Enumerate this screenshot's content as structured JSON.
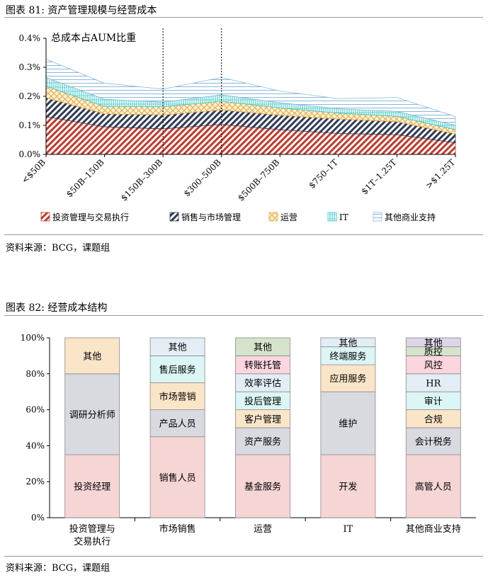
{
  "colors": {
    "invest": "#c0392b",
    "sales": "#2e3b55",
    "ops": "#e8b04a",
    "it": "#38c6c6",
    "other": "#8cb8d8",
    "bar_border": "#8a8a8a"
  },
  "chart_data": [
    {
      "type": "area",
      "figure_title": "图表 81: 资产管理规模与经营成本",
      "inner_title": "总成本占AUM比重",
      "categories": [
        "<$50B",
        "$50B–150B",
        "$150B–300B",
        "$300–500B",
        "$500B–750B",
        "$750–1T",
        "$1T–1.25T",
        ">$1.25T"
      ],
      "y_ticks": [
        "0.0%",
        "0.1%",
        "0.2%",
        "0.3%",
        "0.4%"
      ],
      "ylim": [
        0,
        0.4
      ],
      "stacked": true,
      "series": [
        {
          "name": "投资管理与交易执行",
          "values": [
            0.13,
            0.095,
            0.088,
            0.103,
            0.085,
            0.072,
            0.068,
            0.04
          ]
        },
        {
          "name": "销售与市场管理",
          "values": [
            0.065,
            0.045,
            0.048,
            0.05,
            0.05,
            0.05,
            0.045,
            0.03
          ]
        },
        {
          "name": "运营",
          "values": [
            0.04,
            0.025,
            0.028,
            0.03,
            0.025,
            0.02,
            0.018,
            0.015
          ]
        },
        {
          "name": "IT",
          "values": [
            0.03,
            0.025,
            0.016,
            0.022,
            0.018,
            0.015,
            0.017,
            0.015
          ]
        },
        {
          "name": "其他商业支持",
          "values": [
            0.063,
            0.055,
            0.045,
            0.06,
            0.04,
            0.035,
            0.048,
            0.03
          ]
        }
      ],
      "legend_position": "bottom",
      "annotation_lines_after": [
        "$150B–300B",
        "$300–500B"
      ],
      "source": "资料来源：BCG，课题组"
    },
    {
      "type": "bar",
      "figure_title": "图表 82: 经营成本结构",
      "stacked": true,
      "y_ticks": [
        "0%",
        "20%",
        "40%",
        "60%",
        "80%",
        "100%"
      ],
      "ylim": [
        0,
        100
      ],
      "categories": [
        "投资管理与\n交易执行",
        "市场销售",
        "运营",
        "IT",
        "其他商业支持"
      ],
      "bars": [
        {
          "segments": [
            {
              "label": "投资经理",
              "value": 35,
              "color": "#f6d5d5"
            },
            {
              "label": "调研分析师",
              "value": 45,
              "color": "#d9dae0"
            },
            {
              "label": "其他",
              "value": 20,
              "color": "#fbe5c8"
            }
          ]
        },
        {
          "segments": [
            {
              "label": "销售人员",
              "value": 45,
              "color": "#f6d5d5"
            },
            {
              "label": "产品人员",
              "value": 15,
              "color": "#d9dae0"
            },
            {
              "label": "市场营销",
              "value": 15,
              "color": "#fbe5c8"
            },
            {
              "label": "售后服务",
              "value": 15,
              "color": "#dcf5f5"
            },
            {
              "label": "其他",
              "value": 10,
              "color": "#e3edf6"
            }
          ]
        },
        {
          "segments": [
            {
              "label": "基金服务",
              "value": 35,
              "color": "#f6d5d5"
            },
            {
              "label": "资产服务",
              "value": 15,
              "color": "#d9dae0"
            },
            {
              "label": "客户管理",
              "value": 10,
              "color": "#fbe5c8"
            },
            {
              "label": "投后管理",
              "value": 10,
              "color": "#dcf5f5"
            },
            {
              "label": "效率评估",
              "value": 10,
              "color": "#e3edf6"
            },
            {
              "label": "转账托管",
              "value": 10,
              "color": "#fbd6de"
            },
            {
              "label": "其他",
              "value": 10,
              "color": "#d5e3cc"
            }
          ]
        },
        {
          "segments": [
            {
              "label": "开发",
              "value": 35,
              "color": "#f6d5d5"
            },
            {
              "label": "维护",
              "value": 35,
              "color": "#d9dae0"
            },
            {
              "label": "应用服务",
              "value": 15,
              "color": "#fbe5c8"
            },
            {
              "label": "终端服务",
              "value": 10,
              "color": "#dcf5f5"
            },
            {
              "label": "其他",
              "value": 5,
              "color": "#e3edf6"
            }
          ]
        },
        {
          "segments": [
            {
              "label": "高管人员",
              "value": 35,
              "color": "#f6d5d5"
            },
            {
              "label": "会计税务",
              "value": 15,
              "color": "#d9dae0"
            },
            {
              "label": "合规",
              "value": 10,
              "color": "#fbe5c8"
            },
            {
              "label": "审计",
              "value": 10,
              "color": "#dcf5f5"
            },
            {
              "label": "HR",
              "value": 10,
              "color": "#e3edf6"
            },
            {
              "label": "风控",
              "value": 10,
              "color": "#fbd6de"
            },
            {
              "label": "质控",
              "value": 5,
              "color": "#d5e3cc"
            },
            {
              "label": "其他",
              "value": 5,
              "color": "#ddd5e8"
            }
          ]
        }
      ],
      "source": "资料来源：BCG，课题组"
    }
  ]
}
